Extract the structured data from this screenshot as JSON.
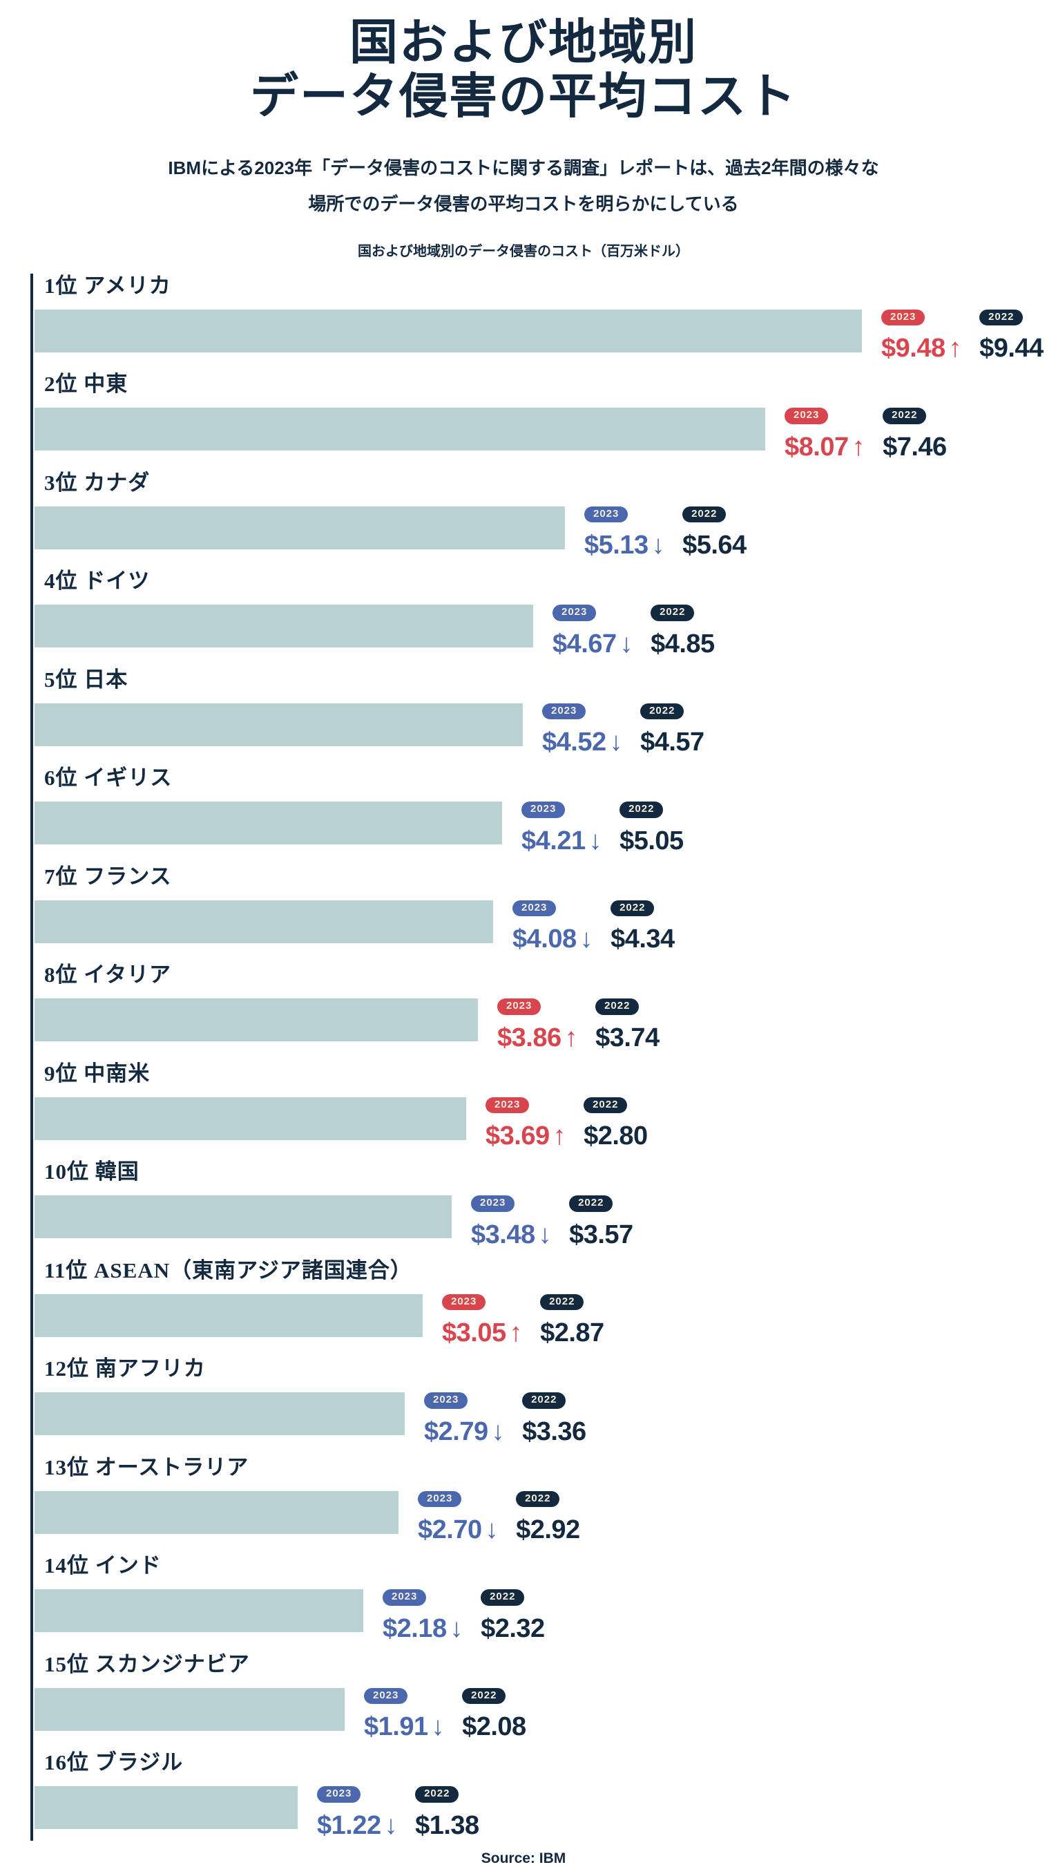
{
  "title": {
    "line1": "国および地域別",
    "line2": "データ侵害の平均コスト"
  },
  "subtitle": {
    "line1": "IBMによる2023年「データ侵害のコストに関する調査」レポートは、過去2年間の様々な",
    "line2": "場所でのデータ侵害の平均コストを明らかにしている"
  },
  "caption": "国および地域別のデータ侵害のコスト（百万米ドル）",
  "source": "Source: IBM",
  "colors": {
    "navy": "#13293F",
    "red": "#D8454F",
    "blue": "#4B68AE",
    "bar_fill": "#B9D1D3",
    "badge_text": "#F3EDDC",
    "background": "#FFFFFF"
  },
  "chart_data": {
    "type": "bar",
    "orientation": "horizontal",
    "title": "国および地域別のデータ侵害のコスト（百万米ドル）",
    "unit_label": "百万米ドル",
    "value_axis_max": 9.48,
    "grid": false,
    "legend_labels": {
      "y2023": "2023",
      "y2022": "2022"
    },
    "rows": [
      {
        "rank": "1位",
        "name": "アメリカ",
        "y2023": 9.48,
        "display_2023": "$9.48",
        "direction": "up",
        "y2022": 9.44,
        "display_2022": "$9.44"
      },
      {
        "rank": "2位",
        "name": "中東",
        "y2023": 8.07,
        "display_2023": "$8.07",
        "direction": "up",
        "y2022": 7.46,
        "display_2022": "$7.46"
      },
      {
        "rank": "3位",
        "name": "カナダ",
        "y2023": 5.13,
        "display_2023": "$5.13",
        "direction": "down",
        "y2022": 5.64,
        "display_2022": "$5.64"
      },
      {
        "rank": "4位",
        "name": "ドイツ",
        "y2023": 4.67,
        "display_2023": "$4.67",
        "direction": "down",
        "y2022": 4.85,
        "display_2022": "$4.85"
      },
      {
        "rank": "5位",
        "name": "日本",
        "y2023": 4.52,
        "display_2023": "$4.52",
        "direction": "down",
        "y2022": 4.57,
        "display_2022": "$4.57"
      },
      {
        "rank": "6位",
        "name": "イギリス",
        "y2023": 4.21,
        "display_2023": "$4.21",
        "direction": "down",
        "y2022": 5.05,
        "display_2022": "$5.05"
      },
      {
        "rank": "7位",
        "name": "フランス",
        "y2023": 4.08,
        "display_2023": "$4.08",
        "direction": "down",
        "y2022": 4.34,
        "display_2022": "$4.34"
      },
      {
        "rank": "8位",
        "name": "イタリア",
        "y2023": 3.86,
        "display_2023": "$3.86",
        "direction": "up",
        "y2022": 3.74,
        "display_2022": "$3.74"
      },
      {
        "rank": "9位",
        "name": "中南米",
        "y2023": 3.69,
        "display_2023": "$3.69",
        "direction": "up",
        "y2022": 2.8,
        "display_2022": "$2.80"
      },
      {
        "rank": "10位",
        "name": "韓国",
        "y2023": 3.48,
        "display_2023": "$3.48",
        "direction": "down",
        "y2022": 3.57,
        "display_2022": "$3.57"
      },
      {
        "rank": "11位",
        "name": "ASEAN（東南アジア諸国連合）",
        "y2023": 3.05,
        "display_2023": "$3.05",
        "direction": "up",
        "y2022": 2.87,
        "display_2022": "$2.87"
      },
      {
        "rank": "12位",
        "name": "南アフリカ",
        "y2023": 2.79,
        "display_2023": "$2.79",
        "direction": "down",
        "y2022": 3.36,
        "display_2022": "$3.36"
      },
      {
        "rank": "13位",
        "name": "オーストラリア",
        "y2023": 2.7,
        "display_2023": "$2.70",
        "direction": "down",
        "y2022": 2.92,
        "display_2022": "$2.92"
      },
      {
        "rank": "14位",
        "name": "インド",
        "y2023": 2.18,
        "display_2023": "$2.18",
        "direction": "down",
        "y2022": 2.32,
        "display_2022": "$2.32"
      },
      {
        "rank": "15位",
        "name": "スカンジナビア",
        "y2023": 1.91,
        "display_2023": "$1.91",
        "direction": "down",
        "y2022": 2.08,
        "display_2022": "$2.08"
      },
      {
        "rank": "16位",
        "name": "ブラジル",
        "y2023": 1.22,
        "display_2023": "$1.22",
        "direction": "down",
        "y2022": 1.38,
        "display_2022": "$1.38"
      }
    ],
    "arrows": {
      "up": "↑",
      "down": "↓"
    }
  }
}
